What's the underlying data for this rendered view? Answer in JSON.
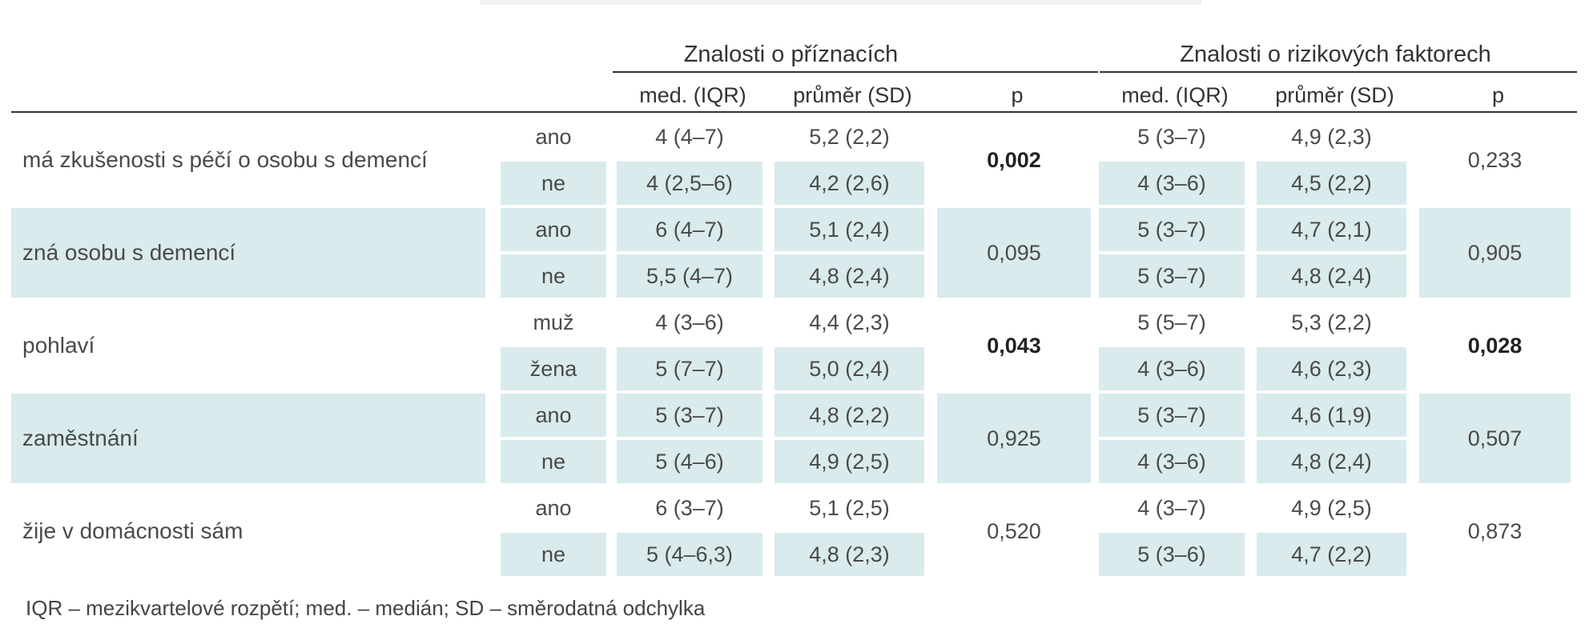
{
  "header": {
    "group1": "Znalosti o příznacích",
    "group2": "Znalosti o rizikových faktorech",
    "cols": [
      "med. (IQR)",
      "průměr (SD)",
      "p"
    ]
  },
  "rows": [
    {
      "label": "má zkušenosti s péčí o osobu s demencí",
      "sub": [
        {
          "cat": "ano",
          "g1_med": "4 (4–7)",
          "g1_mean": "5,2 (2,2)",
          "g2_med": "5 (3–7)",
          "g2_mean": "4,9 (2,3)"
        },
        {
          "cat": "ne",
          "g1_med": "4 (2,5–6)",
          "g1_mean": "4,2 (2,6)",
          "g2_med": "4 (3–6)",
          "g2_mean": "4,5 (2,2)"
        }
      ],
      "p1": "0,002",
      "p2": "0,233"
    },
    {
      "label": "zná osobu s demencí",
      "sub": [
        {
          "cat": "ano",
          "g1_med": "6 (4–7)",
          "g1_mean": "5,1 (2,4)",
          "g2_med": "5 (3–7)",
          "g2_mean": "4,7 (2,1)"
        },
        {
          "cat": "ne",
          "g1_med": "5,5 (4–7)",
          "g1_mean": "4,8 (2,4)",
          "g2_med": "5 (3–7)",
          "g2_mean": "4,8 (2,4)"
        }
      ],
      "p1": "0,095",
      "p2": "0,905"
    },
    {
      "label": "pohlaví",
      "sub": [
        {
          "cat": "muž",
          "g1_med": "4 (3–6)",
          "g1_mean": "4,4 (2,3)",
          "g2_med": "5 (5–7)",
          "g2_mean": "5,3 (2,2)"
        },
        {
          "cat": "žena",
          "g1_med": "5 (7–7)",
          "g1_mean": "5,0 (2,4)",
          "g2_med": "4 (3–6)",
          "g2_mean": "4,6 (2,3)"
        }
      ],
      "p1": "0,043",
      "p2": "0,028"
    },
    {
      "label": "zaměstnání",
      "sub": [
        {
          "cat": "ano",
          "g1_med": "5 (3–7)",
          "g1_mean": "4,8 (2,2)",
          "g2_med": "5 (3–7)",
          "g2_mean": "4,6 (1,9)"
        },
        {
          "cat": "ne",
          "g1_med": "5 (4–6)",
          "g1_mean": "4,9 (2,5)",
          "g2_med": "4 (3–6)",
          "g2_mean": "4,8 (2,4)"
        }
      ],
      "p1": "0,925",
      "p2": "0,507"
    },
    {
      "label": "žije v domácnosti sám",
      "sub": [
        {
          "cat": "ano",
          "g1_med": "6 (3–7)",
          "g1_mean": "5,1 (2,5)",
          "g2_med": "4 (3–7)",
          "g2_mean": "4,9 (2,5)"
        },
        {
          "cat": "ne",
          "g1_med": "5 (4–6,3)",
          "g1_mean": "4,8 (2,3)",
          "g2_med": "5 (3–6)",
          "g2_mean": "4,7 (2,2)"
        }
      ],
      "p1": "0,520",
      "p2": "0,873"
    }
  ],
  "footnote": "IQR – mezikvartelové rozpětí; med. – medián; SD – směrodatná odchylka"
}
